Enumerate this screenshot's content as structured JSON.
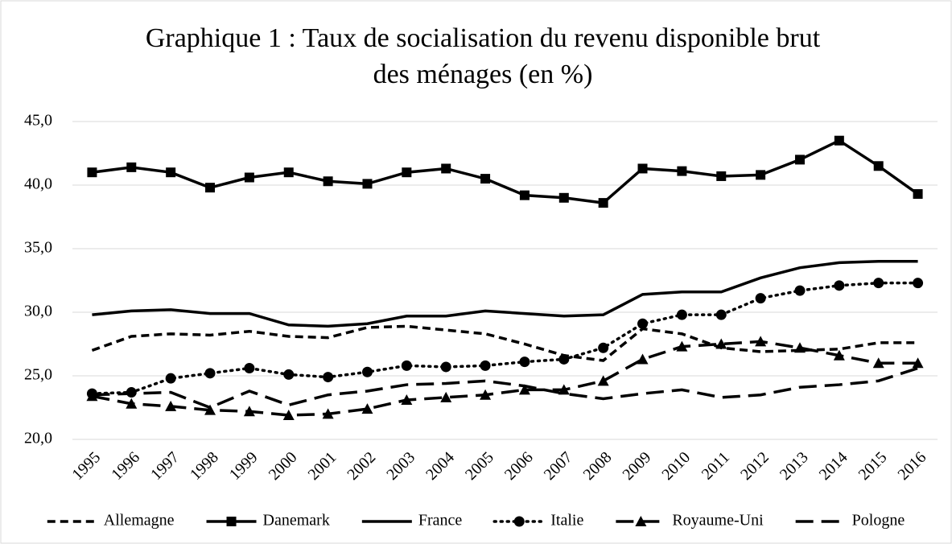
{
  "chart_data": {
    "type": "line",
    "title": [
      "Graphique 1 : Taux de socialisation du revenu disponible brut",
      "des ménages (en %)"
    ],
    "categories": [
      "1995",
      "1996",
      "1997",
      "1998",
      "1999",
      "2000",
      "2001",
      "2002",
      "2003",
      "2004",
      "2005",
      "2006",
      "2007",
      "2008",
      "2009",
      "2010",
      "2011",
      "2012",
      "2013",
      "2014",
      "2015",
      "2016"
    ],
    "ylim": [
      20,
      45
    ],
    "yticks": [
      {
        "value": 20,
        "label": "20,0"
      },
      {
        "value": 25,
        "label": "25,0"
      },
      {
        "value": 30,
        "label": "30,0"
      },
      {
        "value": 35,
        "label": "35,0"
      },
      {
        "value": 40,
        "label": "40,0"
      },
      {
        "value": 45,
        "label": "45,0"
      }
    ],
    "grid": true,
    "legend": "bottom",
    "series": [
      {
        "name": "Allemagne",
        "color": "#000000",
        "line_style": "dashed",
        "values": [
          27.0,
          28.1,
          28.3,
          28.2,
          28.5,
          28.1,
          28.0,
          28.8,
          28.9,
          28.6,
          28.3,
          27.5,
          26.6,
          26.2,
          28.7,
          28.3,
          27.2,
          26.9,
          27.0,
          27.1,
          27.6,
          27.6
        ]
      },
      {
        "name": "Danemark",
        "color": "#000000",
        "line_style": "solid",
        "marker": "square",
        "values": [
          41.0,
          41.4,
          41.0,
          39.8,
          40.6,
          41.0,
          40.3,
          40.1,
          41.0,
          41.3,
          40.5,
          39.2,
          39.0,
          38.6,
          41.3,
          41.1,
          40.7,
          40.8,
          42.0,
          43.5,
          41.5,
          39.3
        ]
      },
      {
        "name": "France",
        "color": "#000000",
        "line_style": "solid",
        "values": [
          29.8,
          30.1,
          30.2,
          29.9,
          29.9,
          29.0,
          28.9,
          29.1,
          29.7,
          29.7,
          30.1,
          29.9,
          29.7,
          29.8,
          31.4,
          31.6,
          31.6,
          32.7,
          33.5,
          33.9,
          34.0,
          34.0
        ]
      },
      {
        "name": "Italie",
        "color": "#000000",
        "line_style": "dotted",
        "marker": "circle",
        "values": [
          23.6,
          23.7,
          24.8,
          25.2,
          25.6,
          25.1,
          24.9,
          25.3,
          25.8,
          25.7,
          25.8,
          26.1,
          26.3,
          27.2,
          29.1,
          29.8,
          29.8,
          31.1,
          31.7,
          32.1,
          32.3,
          32.3
        ]
      },
      {
        "name": "Royaume-Uni",
        "color": "#000000",
        "line_style": "long-dashed",
        "marker": "triangle",
        "values": [
          23.4,
          22.8,
          22.6,
          22.3,
          22.2,
          21.9,
          22.0,
          22.4,
          23.1,
          23.3,
          23.5,
          23.9,
          23.9,
          24.6,
          26.3,
          27.3,
          27.5,
          27.7,
          27.2,
          26.6,
          26.0,
          26.0
        ]
      },
      {
        "name": "Pologne",
        "color": "#000000",
        "line_style": "long-dashed",
        "values": [
          23.5,
          23.6,
          23.7,
          22.5,
          23.8,
          22.7,
          23.5,
          23.8,
          24.3,
          24.4,
          24.6,
          24.2,
          23.6,
          23.2,
          23.6,
          23.9,
          23.3,
          23.5,
          24.1,
          24.3,
          24.6,
          25.6
        ]
      }
    ]
  }
}
